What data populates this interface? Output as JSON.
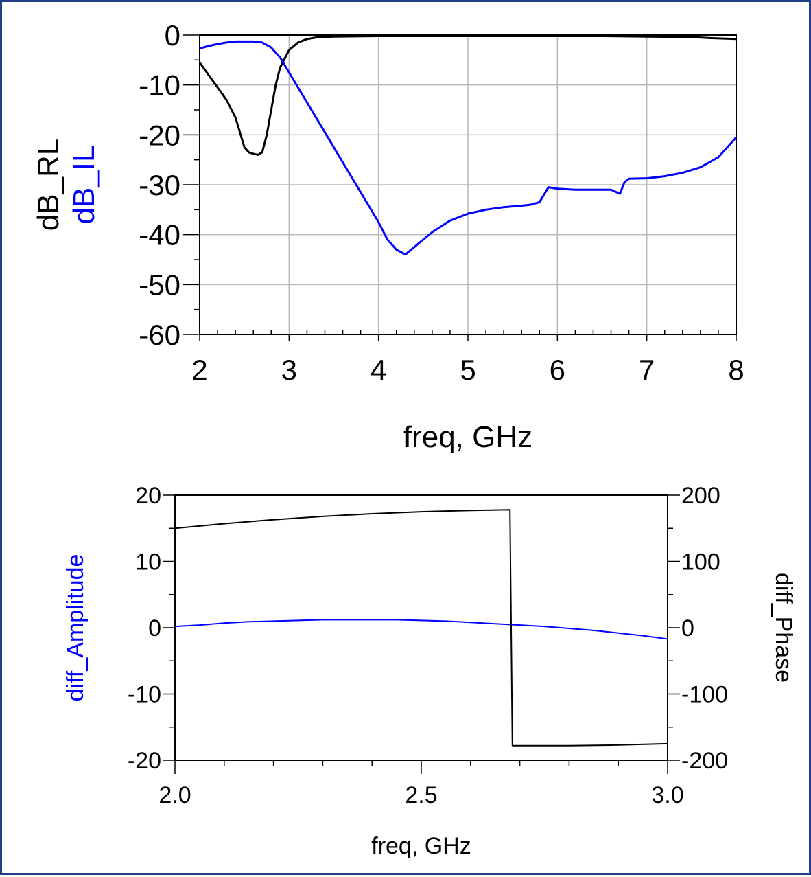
{
  "chart_data": [
    {
      "type": "line",
      "xlabel": "freq, GHz",
      "ylabel": [
        "dB_RL",
        "dB_IL"
      ],
      "xlim": [
        2,
        8
      ],
      "ylim": [
        -60,
        0
      ],
      "xticks": [
        "2",
        "3",
        "4",
        "5",
        "6",
        "7",
        "8"
      ],
      "yticks": [
        "0",
        "-10",
        "-20",
        "-30",
        "-40",
        "-50",
        "-60"
      ],
      "grid": true,
      "series": [
        {
          "name": "dB_RL",
          "color": "#000000",
          "x": [
            2.0,
            2.1,
            2.2,
            2.3,
            2.4,
            2.45,
            2.5,
            2.55,
            2.6,
            2.65,
            2.7,
            2.75,
            2.8,
            2.85,
            2.9,
            3.0,
            3.1,
            3.2,
            3.3,
            3.5,
            4.0,
            5.0,
            6.0,
            6.5,
            7.0,
            7.5,
            7.7,
            8.0
          ],
          "y": [
            -5.5,
            -8,
            -10.5,
            -13,
            -16.5,
            -19.5,
            -22.5,
            -23.5,
            -23.8,
            -24,
            -23.5,
            -20,
            -15,
            -10,
            -6.5,
            -3,
            -1.5,
            -0.8,
            -0.5,
            -0.3,
            -0.2,
            -0.2,
            -0.2,
            -0.2,
            -0.3,
            -0.4,
            -0.6,
            -0.8
          ]
        },
        {
          "name": "dB_IL",
          "color": "#0000ff",
          "x": [
            2.0,
            2.1,
            2.2,
            2.3,
            2.4,
            2.5,
            2.6,
            2.7,
            2.8,
            2.9,
            3.0,
            3.2,
            3.4,
            3.6,
            3.8,
            4.0,
            4.1,
            4.2,
            4.3,
            4.4,
            4.5,
            4.6,
            4.8,
            5.0,
            5.2,
            5.4,
            5.6,
            5.7,
            5.8,
            5.85,
            5.9,
            6.0,
            6.2,
            6.4,
            6.6,
            6.7,
            6.75,
            6.8,
            7.0,
            7.2,
            7.4,
            7.6,
            7.8,
            7.9,
            8.0
          ],
          "y": [
            -2.7,
            -2.2,
            -1.8,
            -1.5,
            -1.3,
            -1.3,
            -1.3,
            -1.5,
            -2.5,
            -4.5,
            -7.5,
            -13.5,
            -19.5,
            -25.5,
            -31.5,
            -37.5,
            -41,
            -43,
            -44,
            -42.5,
            -41,
            -39.5,
            -37.2,
            -35.8,
            -35,
            -34.5,
            -34.2,
            -34,
            -33.5,
            -32,
            -30.5,
            -30.8,
            -31,
            -31,
            -31,
            -31.8,
            -29.5,
            -28.8,
            -28.7,
            -28.3,
            -27.6,
            -26.5,
            -24.5,
            -22.5,
            -20.5
          ]
        }
      ]
    },
    {
      "type": "line",
      "xlabel": "freq, GHz",
      "ylabel_left": "diff_Amplitude",
      "ylabel_right": "diff_Phase",
      "xlim": [
        2.0,
        3.0
      ],
      "ylim_left": [
        -20,
        20
      ],
      "ylim_right": [
        -200,
        200
      ],
      "xticks": [
        "2.0",
        "2.5",
        "3.0"
      ],
      "yticks_left": [
        "20",
        "10",
        "0",
        "-10",
        "-20"
      ],
      "yticks_right": [
        "200",
        "100",
        "0",
        "-100",
        "-200"
      ],
      "grid": false,
      "series": [
        {
          "name": "diff_Amplitude",
          "axis": "left",
          "color": "#0000ff",
          "x": [
            2.0,
            2.05,
            2.1,
            2.15,
            2.2,
            2.25,
            2.3,
            2.35,
            2.4,
            2.45,
            2.5,
            2.55,
            2.6,
            2.65,
            2.7,
            2.75,
            2.8,
            2.85,
            2.9,
            2.95,
            3.0
          ],
          "y": [
            0.2,
            0.4,
            0.7,
            0.9,
            1.0,
            1.1,
            1.2,
            1.2,
            1.2,
            1.2,
            1.1,
            1.0,
            0.8,
            0.6,
            0.4,
            0.2,
            -0.1,
            -0.4,
            -0.8,
            -1.2,
            -1.7
          ]
        },
        {
          "name": "diff_Phase",
          "axis": "right",
          "color": "#000000",
          "x": [
            2.0,
            2.1,
            2.2,
            2.3,
            2.4,
            2.5,
            2.6,
            2.68,
            2.685,
            2.7,
            2.8,
            2.9,
            3.0
          ],
          "y": [
            150,
            157,
            163,
            168,
            172,
            175,
            177,
            178,
            -178,
            -178,
            -178,
            -177,
            -175
          ]
        }
      ]
    }
  ]
}
